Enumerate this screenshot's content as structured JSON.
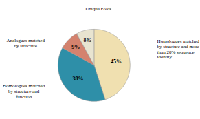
{
  "chart_data": {
    "type": "pie",
    "categories": [
      "Homologues matched\nby structure and more\nthan 20% sequence\nidentity",
      "Homologues matched\nby structure and\nfunction",
      "Analogues matched\nby structure",
      "Unique Folds"
    ],
    "values": [
      45,
      38,
      9,
      8
    ],
    "colors": [
      "#F0E0B0",
      "#2E8FA8",
      "#D4826E",
      "#E8E4D0"
    ],
    "data_labels": true
  }
}
